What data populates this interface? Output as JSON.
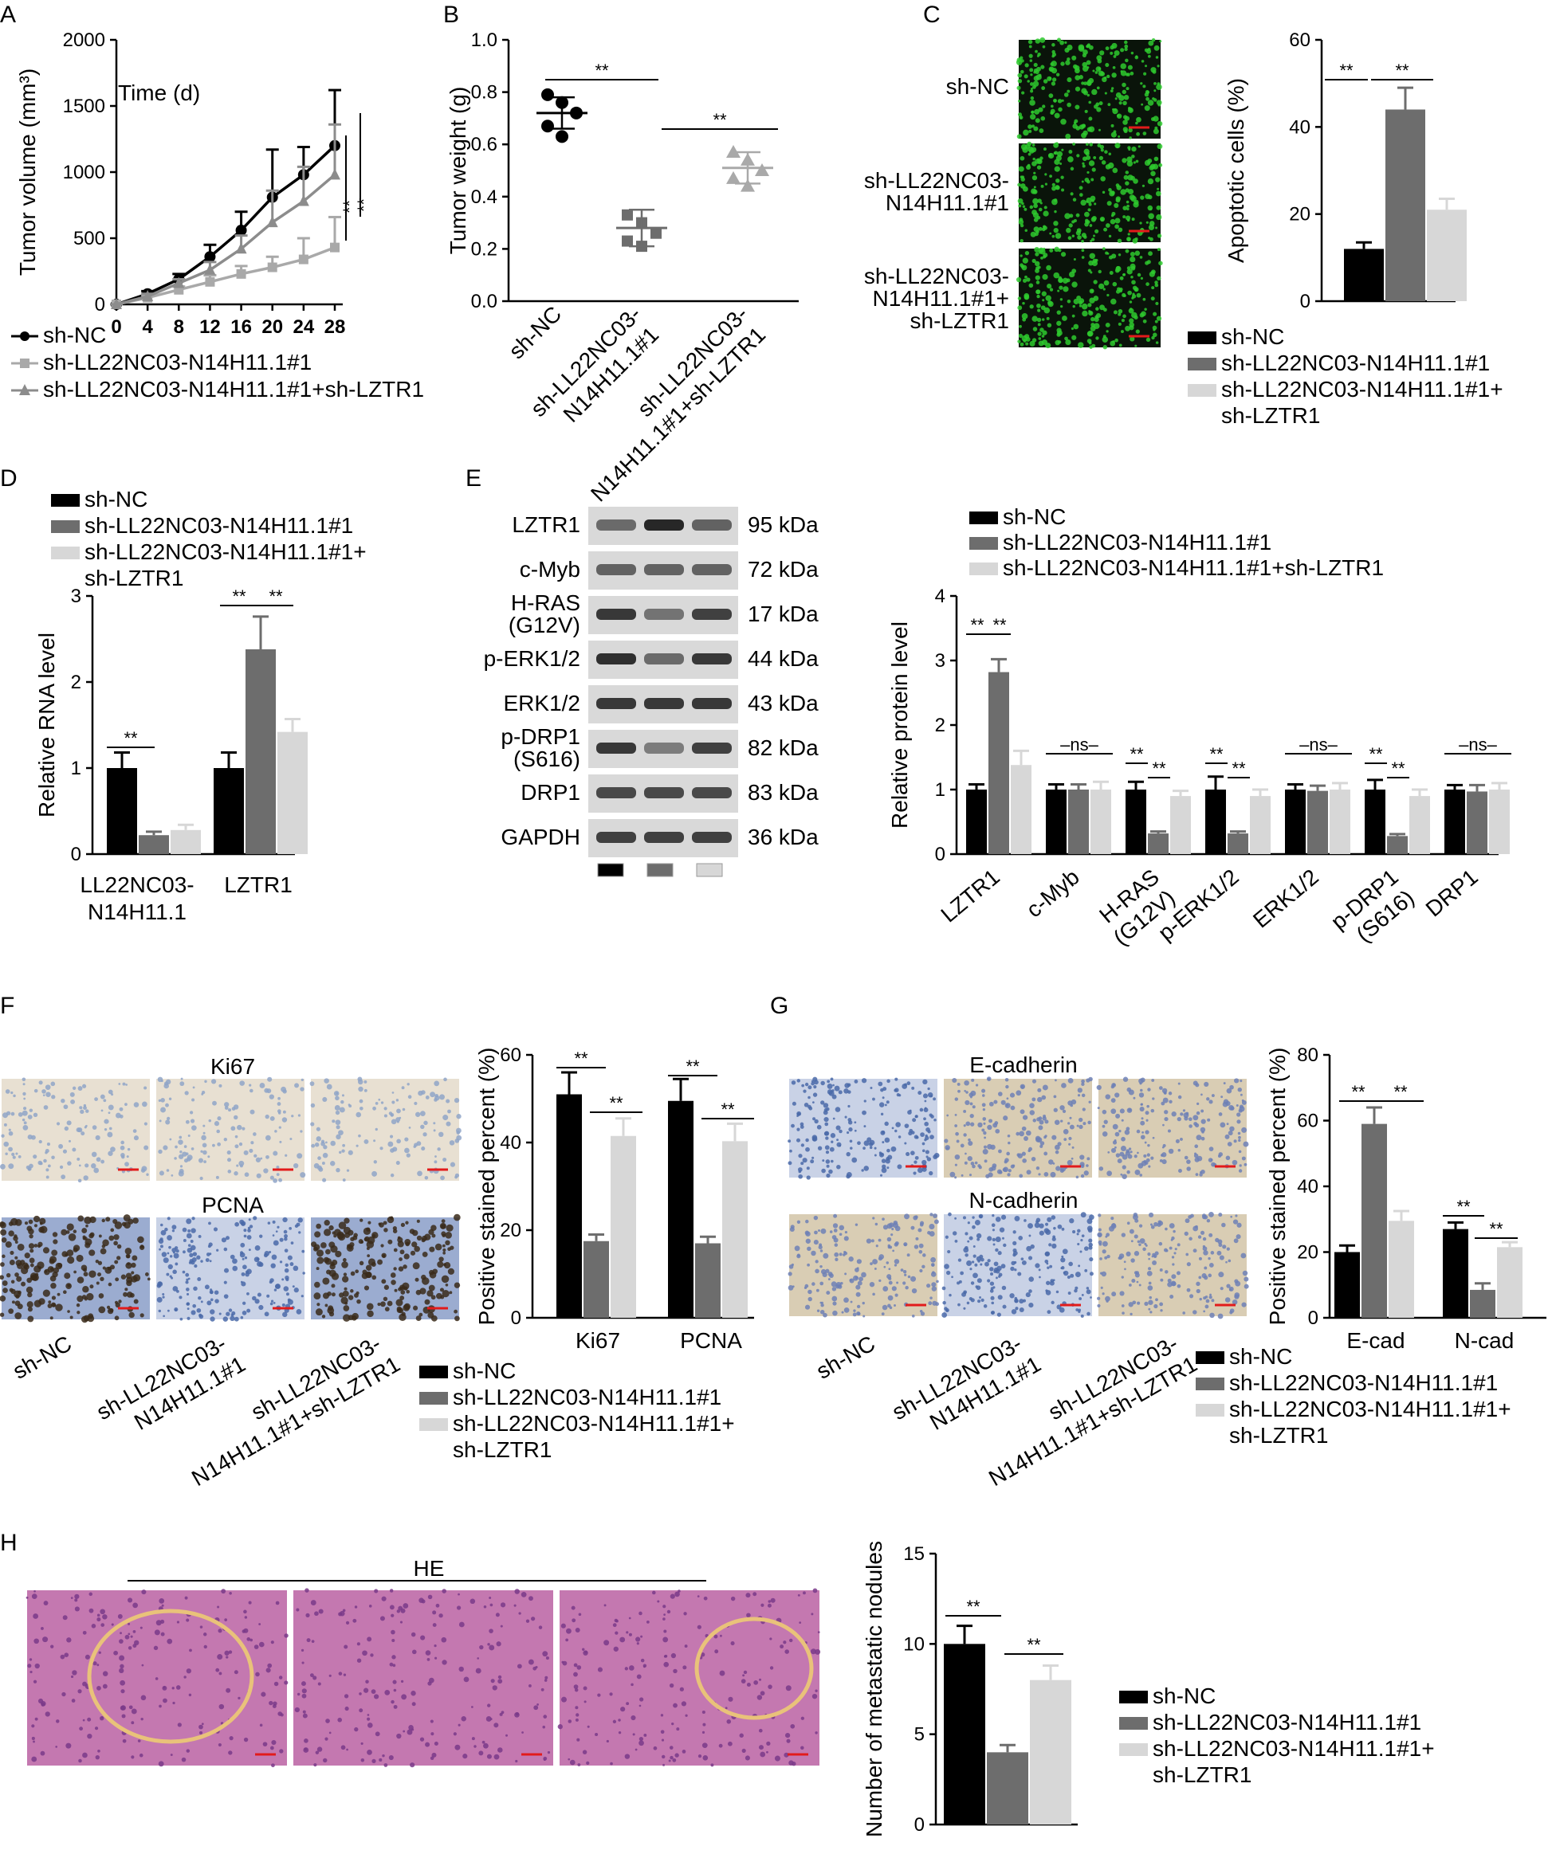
{
  "colors": {
    "black": "#000000",
    "dark_gray": "#6d6d6d",
    "light_gray": "#d7d7d7",
    "line_gray": "#8c8c8c",
    "line_lightgray": "#a9a9a9",
    "fluor_green": "#2ec92e",
    "ihc_brown": "#a07a50",
    "ihc_blue": "#8fa4c8",
    "he_pink": "#b55a96",
    "nodule_outline": "#e9c27a",
    "scale_red": "#e21b1b"
  },
  "groups": [
    "sh-NC",
    "sh-LL22NC03-N14H11.1#1",
    "sh-LL22NC03-N14H11.1#1+sh-LZTR1"
  ],
  "panels": [
    {
      "id": "A",
      "letter": "A",
      "type": "line",
      "ylabel": "Tumor volume (mm³)",
      "inner_text": "Time (d)",
      "x": [
        0,
        4,
        8,
        12,
        16,
        20,
        24,
        28
      ],
      "ylim": [
        0,
        2000
      ],
      "yticks": [
        0,
        500,
        1000,
        1500,
        2000
      ],
      "series": [
        {
          "name": "sh-NC",
          "marker": "circle",
          "color": "#000000",
          "values": [
            0,
            80,
            190,
            360,
            560,
            810,
            980,
            1200
          ],
          "err": [
            0,
            20,
            40,
            90,
            140,
            360,
            210,
            420
          ]
        },
        {
          "name": "sh-LL22NC03-N14H11.1#1",
          "marker": "square",
          "color": "#a9a9a9",
          "values": [
            0,
            50,
            110,
            170,
            230,
            280,
            340,
            430
          ],
          "err": [
            0,
            15,
            25,
            50,
            60,
            80,
            160,
            230
          ]
        },
        {
          "name": "sh-LL22NC03-N14H11.1#1+sh-LZTR1",
          "marker": "triangle",
          "color": "#8c8c8c",
          "values": [
            0,
            60,
            160,
            260,
            420,
            620,
            780,
            980
          ],
          "err": [
            0,
            20,
            30,
            60,
            100,
            240,
            260,
            380
          ]
        }
      ],
      "sig": [
        "**",
        "**"
      ],
      "legend": [
        "sh-NC",
        "sh-LL22NC03-N14H11.1#1",
        "sh-LL22NC03-N14H11.1#1+sh-LZTR1"
      ]
    },
    {
      "id": "B",
      "letter": "B",
      "type": "scatter",
      "ylabel": "Tumor weight (g)",
      "ylim": [
        0,
        1.0
      ],
      "yticks": [
        "0.0",
        "0.2",
        "0.4",
        "0.6",
        "0.8",
        "1.0"
      ],
      "categories": [
        "sh-NC",
        "sh-LL22NC03-N14H11.1#1",
        "sh-LL22NC03-N14H11.1#1+sh-LZTR1"
      ],
      "cat_labels": [
        [
          "sh-NC"
        ],
        [
          "sh-LL22NC03-",
          "N14H11.1#1"
        ],
        [
          "sh-LL22NC03-",
          "N14H11.1#1+sh-LZTR1"
        ]
      ],
      "points": [
        [
          0.79,
          0.76,
          0.72,
          0.67,
          0.63
        ],
        [
          0.33,
          0.3,
          0.26,
          0.23,
          0.21
        ],
        [
          0.57,
          0.54,
          0.5,
          0.47,
          0.44
        ]
      ],
      "means": [
        0.72,
        0.28,
        0.51
      ],
      "sd": [
        0.06,
        0.07,
        0.06
      ],
      "sig": [
        "**",
        "**"
      ]
    },
    {
      "id": "C",
      "letter": "C",
      "type": "bar",
      "ylabel": "Apoptotic cells (%)",
      "ylim": [
        0,
        60
      ],
      "yticks": [
        0,
        20,
        40,
        60
      ],
      "categories": [
        ""
      ],
      "series_values": [
        [
          12
        ],
        [
          44
        ],
        [
          21
        ]
      ],
      "series_err": [
        [
          1.5
        ],
        [
          5
        ],
        [
          2.5
        ]
      ],
      "image_rows": [
        [
          "sh-NC"
        ],
        [
          "sh-LL22NC03-",
          "N14H11.1#1"
        ],
        [
          "sh-LL22NC03-",
          "N14H11.1#1+",
          "sh-LZTR1"
        ]
      ],
      "sig": [
        "**",
        "**"
      ],
      "legend": [
        "sh-NC",
        "sh-LL22NC03-N14H11.1#1",
        "sh-LL22NC03-N14H11.1#1+",
        "sh-LZTR1"
      ]
    },
    {
      "id": "D",
      "letter": "D",
      "type": "bar",
      "ylabel": "Relative RNA level",
      "ylim": [
        0,
        3
      ],
      "yticks": [
        0,
        1,
        2,
        3
      ],
      "categories": [
        [
          "LL22NC03-",
          "N14H11.1"
        ],
        [
          "LZTR1"
        ]
      ],
      "series_values": [
        [
          1.0,
          1.0
        ],
        [
          0.22,
          2.38
        ],
        [
          0.28,
          1.42
        ]
      ],
      "series_err": [
        [
          0.18,
          0.18
        ],
        [
          0.04,
          0.38
        ],
        [
          0.06,
          0.15
        ]
      ],
      "sig": [
        "**",
        "**",
        "**"
      ],
      "legend": [
        "sh-NC",
        "sh-LL22NC03-N14H11.1#1",
        "sh-LL22NC03-N14H11.1#1+",
        "sh-LZTR1"
      ]
    },
    {
      "id": "E",
      "letter": "E",
      "type": "bar",
      "ylabel": "Relative protein level",
      "ylim": [
        0,
        4
      ],
      "yticks": [
        0,
        1,
        2,
        3,
        4
      ],
      "blots": [
        {
          "name": [
            "LZTR1"
          ],
          "kda": "95 kDa",
          "bands": [
            0.55,
            0.95,
            0.6
          ]
        },
        {
          "name": [
            "c-Myb"
          ],
          "kda": "72 kDa",
          "bands": [
            0.6,
            0.6,
            0.6
          ]
        },
        {
          "name": [
            "H-RAS",
            "(G12V)"
          ],
          "kda": "17 kDa",
          "bands": [
            0.85,
            0.5,
            0.8
          ]
        },
        {
          "name": [
            "p-ERK1/2"
          ],
          "kda": "44 kDa",
          "bands": [
            0.9,
            0.55,
            0.85
          ]
        },
        {
          "name": [
            "ERK1/2"
          ],
          "kda": "43 kDa",
          "bands": [
            0.85,
            0.85,
            0.85
          ]
        },
        {
          "name": [
            "p-DRP1",
            "(S616)"
          ],
          "kda": "82 kDa",
          "bands": [
            0.85,
            0.45,
            0.8
          ]
        },
        {
          "name": [
            "DRP1"
          ],
          "kda": "83 kDa",
          "bands": [
            0.75,
            0.75,
            0.75
          ]
        },
        {
          "name": [
            "GAPDH"
          ],
          "kda": "36 kDa",
          "bands": [
            0.8,
            0.8,
            0.8
          ]
        }
      ],
      "categories": [
        [
          "LZTR1"
        ],
        [
          "c-Myb"
        ],
        [
          "H-RAS",
          "(G12V)"
        ],
        [
          "p-ERK1/2"
        ],
        [
          "ERK1/2"
        ],
        [
          "p-DRP1",
          "(S616)"
        ],
        [
          "DRP1"
        ]
      ],
      "series_values": [
        [
          1.0,
          1.0,
          1.0,
          1.0,
          1.0,
          1.0,
          1.0
        ],
        [
          2.82,
          1.0,
          0.32,
          0.32,
          0.98,
          0.28,
          0.97
        ],
        [
          1.38,
          1.0,
          0.9,
          0.9,
          1.0,
          0.9,
          1.0
        ]
      ],
      "series_err": [
        [
          0.08,
          0.08,
          0.12,
          0.2,
          0.08,
          0.15,
          0.07
        ],
        [
          0.2,
          0.08,
          0.03,
          0.03,
          0.08,
          0.03,
          0.1
        ],
        [
          0.22,
          0.12,
          0.08,
          0.1,
          0.1,
          0.1,
          0.1
        ]
      ],
      "sig_labels": [
        "**",
        "**",
        "–ns–",
        "**",
        "**",
        "**",
        "**",
        "–ns–",
        "**",
        "**",
        "–ns–"
      ],
      "legend": [
        "sh-NC",
        "sh-LL22NC03-N14H11.1#1",
        "sh-LL22NC03-N14H11.1#1+sh-LZTR1"
      ]
    },
    {
      "id": "F",
      "letter": "F",
      "type": "bar",
      "ylabel": "Positive stained percent (%)",
      "ylim": [
        0,
        60
      ],
      "yticks": [
        0,
        20,
        40,
        60
      ],
      "image_titles": [
        "Ki67",
        "PCNA"
      ],
      "image_labels": [
        [
          "sh-NC"
        ],
        [
          "sh-LL22NC03-",
          "N14H11.1#1"
        ],
        [
          "sh-LL22NC03-",
          "N14H11.1#1+sh-LZTR1"
        ]
      ],
      "categories": [
        [
          "Ki67"
        ],
        [
          "PCNA"
        ]
      ],
      "series_values": [
        [
          51,
          49.5
        ],
        [
          17.5,
          17
        ],
        [
          41.5,
          40.3
        ]
      ],
      "series_err": [
        [
          5,
          5
        ],
        [
          1.5,
          1.5
        ],
        [
          4,
          4
        ]
      ],
      "sig": [
        "**",
        "**",
        "**",
        "**"
      ],
      "legend": [
        "sh-NC",
        "sh-LL22NC03-N14H11.1#1",
        "sh-LL22NC03-N14H11.1#1+",
        "sh-LZTR1"
      ]
    },
    {
      "id": "G",
      "letter": "G",
      "type": "bar",
      "ylabel": "Positive stained percent (%)",
      "ylim": [
        0,
        80
      ],
      "yticks": [
        0,
        20,
        40,
        60,
        80
      ],
      "image_titles": [
        "E-cadherin",
        "N-cadherin"
      ],
      "image_labels": [
        [
          "sh-NC"
        ],
        [
          "sh-LL22NC03-",
          "N14H11.1#1"
        ],
        [
          "sh-LL22NC03-",
          "N14H11.1#1+sh-LZTR1"
        ]
      ],
      "categories": [
        [
          "E-cad"
        ],
        [
          "N-cad"
        ]
      ],
      "series_values": [
        [
          20,
          27
        ],
        [
          59,
          8.5
        ],
        [
          29.5,
          21.5
        ]
      ],
      "series_err": [
        [
          2,
          2
        ],
        [
          5,
          2
        ],
        [
          3,
          1.5
        ]
      ],
      "sig": [
        "**",
        "**",
        "**",
        "**"
      ],
      "legend": [
        "sh-NC",
        "sh-LL22NC03-N14H11.1#1",
        "sh-LL22NC03-N14H11.1#1+",
        "sh-LZTR1"
      ]
    },
    {
      "id": "H",
      "letter": "H",
      "type": "bar",
      "ylabel": "Number of metastatic nodules",
      "ylim": [
        0,
        15
      ],
      "yticks": [
        0,
        5,
        10,
        15
      ],
      "image_title": "HE",
      "categories": [
        ""
      ],
      "series_values": [
        [
          10
        ],
        [
          4
        ],
        [
          8
        ]
      ],
      "series_err": [
        [
          1
        ],
        [
          0.4
        ],
        [
          0.8
        ]
      ],
      "sig": [
        "**",
        "**"
      ],
      "legend": [
        "sh-NC",
        "sh-LL22NC03-N14H11.1#1",
        "sh-LL22NC03-N14H11.1#1+",
        "sh-LZTR1"
      ]
    }
  ],
  "chart_data": [
    {
      "panel": "A",
      "type": "line",
      "title": "",
      "xlabel": "Time (d)",
      "ylabel": "Tumor volume (mm³)",
      "ylim": [
        0,
        2000
      ],
      "x": [
        0,
        4,
        8,
        12,
        16,
        20,
        24,
        28
      ],
      "series": [
        {
          "name": "sh-NC",
          "values": [
            0,
            80,
            190,
            360,
            560,
            810,
            980,
            1200
          ]
        },
        {
          "name": "sh-LL22NC03-N14H11.1#1",
          "values": [
            0,
            50,
            110,
            170,
            230,
            280,
            340,
            430
          ]
        },
        {
          "name": "sh-LL22NC03-N14H11.1#1+sh-LZTR1",
          "values": [
            0,
            60,
            160,
            260,
            420,
            620,
            780,
            980
          ]
        }
      ]
    },
    {
      "panel": "B",
      "type": "scatter",
      "title": "",
      "xlabel": "",
      "ylabel": "Tumor weight (g)",
      "ylim": [
        0,
        1.0
      ],
      "categories": [
        "sh-NC",
        "sh-LL22NC03-N14H11.1#1",
        "sh-LL22NC03-N14H11.1#1+sh-LZTR1"
      ],
      "means": [
        0.72,
        0.28,
        0.51
      ]
    },
    {
      "panel": "C",
      "type": "bar",
      "title": "",
      "xlabel": "",
      "ylabel": "Apoptotic cells (%)",
      "ylim": [
        0,
        60
      ],
      "series": [
        {
          "name": "sh-NC",
          "values": [
            12
          ]
        },
        {
          "name": "sh-LL22NC03-N14H11.1#1",
          "values": [
            44
          ]
        },
        {
          "name": "sh-LL22NC03-N14H11.1#1+sh-LZTR1",
          "values": [
            21
          ]
        }
      ]
    },
    {
      "panel": "D",
      "type": "bar",
      "title": "",
      "xlabel": "",
      "ylabel": "Relative RNA level",
      "ylim": [
        0,
        3
      ],
      "categories": [
        "LL22NC03-N14H11.1",
        "LZTR1"
      ],
      "series": [
        {
          "name": "sh-NC",
          "values": [
            1.0,
            1.0
          ]
        },
        {
          "name": "sh-LL22NC03-N14H11.1#1",
          "values": [
            0.22,
            2.38
          ]
        },
        {
          "name": "sh-LL22NC03-N14H11.1#1+sh-LZTR1",
          "values": [
            0.28,
            1.42
          ]
        }
      ]
    },
    {
      "panel": "E",
      "type": "bar",
      "title": "",
      "xlabel": "",
      "ylabel": "Relative protein level",
      "ylim": [
        0,
        4
      ],
      "categories": [
        "LZTR1",
        "c-Myb",
        "H-RAS (G12V)",
        "p-ERK1/2",
        "ERK1/2",
        "p-DRP1 (S616)",
        "DRP1"
      ],
      "series": [
        {
          "name": "sh-NC",
          "values": [
            1.0,
            1.0,
            1.0,
            1.0,
            1.0,
            1.0,
            1.0
          ]
        },
        {
          "name": "sh-LL22NC03-N14H11.1#1",
          "values": [
            2.82,
            1.0,
            0.32,
            0.32,
            0.98,
            0.28,
            0.97
          ]
        },
        {
          "name": "sh-LL22NC03-N14H11.1#1+sh-LZTR1",
          "values": [
            1.38,
            1.0,
            0.9,
            0.9,
            1.0,
            0.9,
            1.0
          ]
        }
      ]
    },
    {
      "panel": "F",
      "type": "bar",
      "title": "",
      "xlabel": "",
      "ylabel": "Positive stained percent (%)",
      "ylim": [
        0,
        60
      ],
      "categories": [
        "Ki67",
        "PCNA"
      ],
      "series": [
        {
          "name": "sh-NC",
          "values": [
            51,
            49.5
          ]
        },
        {
          "name": "sh-LL22NC03-N14H11.1#1",
          "values": [
            17.5,
            17
          ]
        },
        {
          "name": "sh-LL22NC03-N14H11.1#1+sh-LZTR1",
          "values": [
            41.5,
            40.3
          ]
        }
      ]
    },
    {
      "panel": "G",
      "type": "bar",
      "title": "",
      "xlabel": "",
      "ylabel": "Positive stained percent (%)",
      "ylim": [
        0,
        80
      ],
      "categories": [
        "E-cad",
        "N-cad"
      ],
      "series": [
        {
          "name": "sh-NC",
          "values": [
            20,
            27
          ]
        },
        {
          "name": "sh-LL22NC03-N14H11.1#1",
          "values": [
            59,
            8.5
          ]
        },
        {
          "name": "sh-LL22NC03-N14H11.1#1+sh-LZTR1",
          "values": [
            29.5,
            21.5
          ]
        }
      ]
    },
    {
      "panel": "H",
      "type": "bar",
      "title": "",
      "xlabel": "",
      "ylabel": "Number of metastatic nodules",
      "ylim": [
        0,
        15
      ],
      "series": [
        {
          "name": "sh-NC",
          "values": [
            10
          ]
        },
        {
          "name": "sh-LL22NC03-N14H11.1#1",
          "values": [
            4
          ]
        },
        {
          "name": "sh-LL22NC03-N14H11.1#1+sh-LZTR1",
          "values": [
            8
          ]
        }
      ]
    }
  ]
}
